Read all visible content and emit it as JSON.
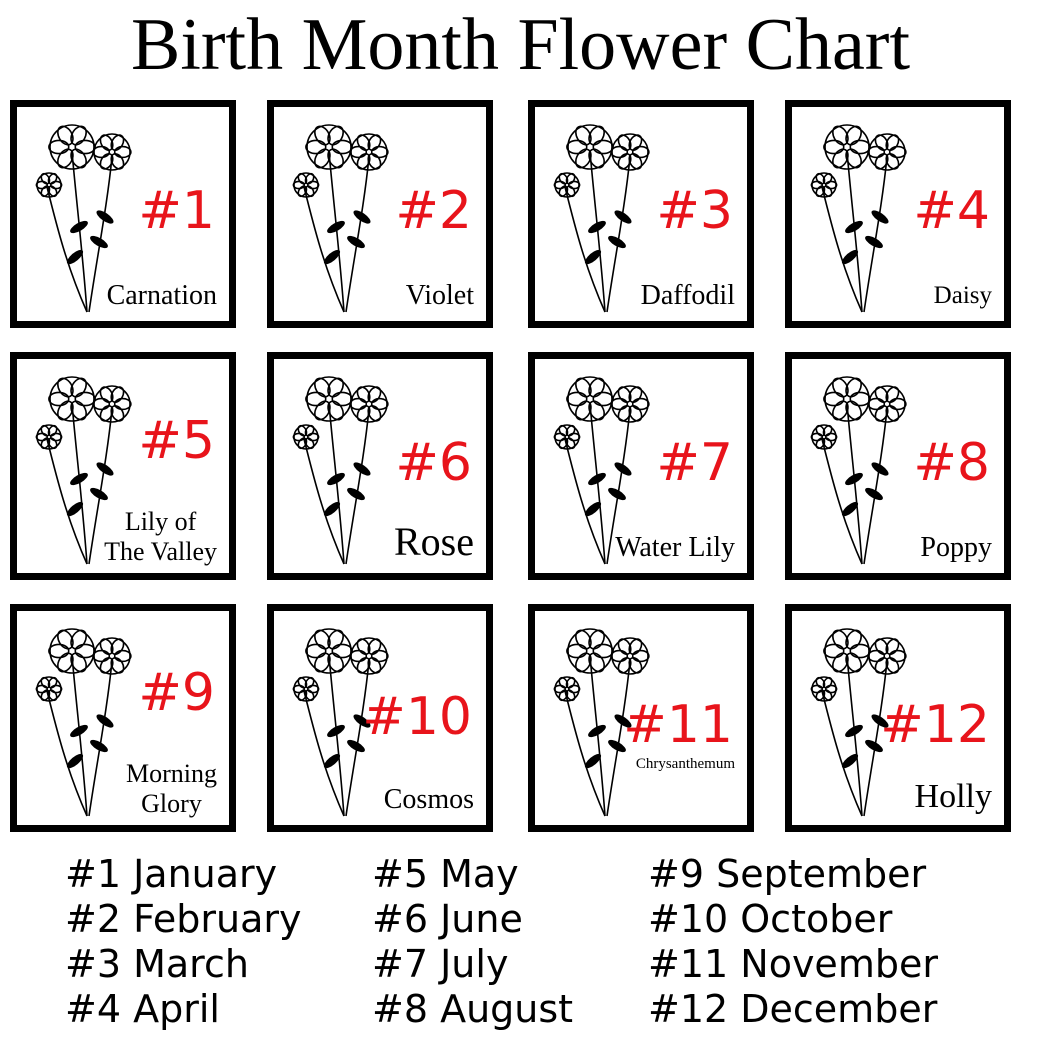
{
  "title": "Birth Month Flower Chart",
  "accent_color": "#e8141b",
  "cards": [
    {
      "number": "#1",
      "name": "Carnation"
    },
    {
      "number": "#2",
      "name": "Violet"
    },
    {
      "number": "#3",
      "name": "Daffodil"
    },
    {
      "number": "#4",
      "name": "Daisy"
    },
    {
      "number": "#5",
      "name": "Lily of The Valley"
    },
    {
      "number": "#6",
      "name": "Rose"
    },
    {
      "number": "#7",
      "name": "Water Lily"
    },
    {
      "number": "#8",
      "name": "Poppy"
    },
    {
      "number": "#9",
      "name": "Morning Glory"
    },
    {
      "number": "#10",
      "name": "Cosmos"
    },
    {
      "number": "#11",
      "name": "Chrysanthemum"
    },
    {
      "number": "#12",
      "name": "Holly"
    }
  ],
  "legend": [
    [
      "#1 January",
      "#2 February",
      "#3 March",
      "#4 April"
    ],
    [
      "#5 May",
      "#6 June",
      "#7 July",
      "#8 August"
    ],
    [
      "#9 September",
      "#10 October",
      "#11 November",
      "#12 December"
    ]
  ]
}
